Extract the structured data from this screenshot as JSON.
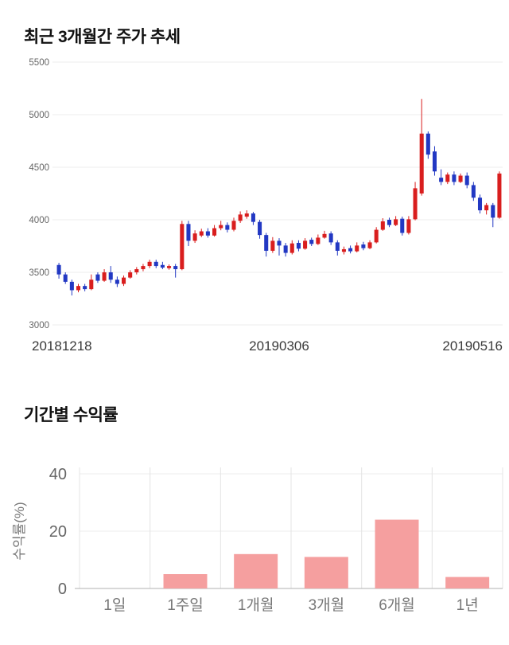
{
  "page": {
    "background": "#ffffff"
  },
  "price_section": {
    "title": "최근 3개월간 주가 추세"
  },
  "returns_section": {
    "title": "기간별 수익률"
  },
  "chart_data": [
    {
      "type": "candlestick",
      "title": "최근 3개월간 주가 추세",
      "x_tick_labels": [
        "20181218",
        "20190306",
        "20190516"
      ],
      "y_ticks": [
        3000,
        3500,
        4000,
        4500,
        5000,
        5500
      ],
      "ylim": [
        3000,
        5500
      ],
      "up_color": "#d91e1e",
      "down_color": "#2238c3",
      "grid": "horizontal-light",
      "candles_format": [
        "open",
        "high",
        "low",
        "close"
      ],
      "candles": [
        [
          3570,
          3590,
          3440,
          3480
        ],
        [
          3480,
          3500,
          3390,
          3410
        ],
        [
          3410,
          3430,
          3280,
          3330
        ],
        [
          3330,
          3390,
          3310,
          3370
        ],
        [
          3370,
          3390,
          3320,
          3340
        ],
        [
          3340,
          3480,
          3330,
          3430
        ],
        [
          3480,
          3500,
          3400,
          3420
        ],
        [
          3420,
          3530,
          3410,
          3500
        ],
        [
          3500,
          3560,
          3400,
          3430
        ],
        [
          3430,
          3460,
          3360,
          3390
        ],
        [
          3390,
          3470,
          3370,
          3450
        ],
        [
          3450,
          3520,
          3440,
          3500
        ],
        [
          3500,
          3550,
          3480,
          3530
        ],
        [
          3530,
          3580,
          3510,
          3560
        ],
        [
          3560,
          3620,
          3540,
          3600
        ],
        [
          3600,
          3620,
          3540,
          3560
        ],
        [
          3570,
          3600,
          3530,
          3545
        ],
        [
          3540,
          3575,
          3525,
          3560
        ],
        [
          3560,
          3580,
          3450,
          3530
        ],
        [
          3530,
          3990,
          3520,
          3960
        ],
        [
          3960,
          3990,
          3750,
          3800
        ],
        [
          3800,
          3900,
          3780,
          3870
        ],
        [
          3850,
          3915,
          3835,
          3890
        ],
        [
          3890,
          3920,
          3830,
          3850
        ],
        [
          3850,
          3950,
          3840,
          3920
        ],
        [
          3920,
          3990,
          3900,
          3950
        ],
        [
          3950,
          3975,
          3880,
          3905
        ],
        [
          3905,
          4020,
          3890,
          3990
        ],
        [
          3990,
          4080,
          3970,
          4050
        ],
        [
          4030,
          4090,
          4010,
          4060
        ],
        [
          4060,
          4075,
          3950,
          3980
        ],
        [
          3980,
          4000,
          3820,
          3855
        ],
        [
          3855,
          3875,
          3650,
          3705
        ],
        [
          3705,
          3835,
          3685,
          3800
        ],
        [
          3800,
          3825,
          3660,
          3755
        ],
        [
          3755,
          3780,
          3650,
          3685
        ],
        [
          3685,
          3805,
          3670,
          3775
        ],
        [
          3780,
          3805,
          3700,
          3725
        ],
        [
          3725,
          3825,
          3715,
          3800
        ],
        [
          3810,
          3830,
          3750,
          3770
        ],
        [
          3770,
          3860,
          3760,
          3830
        ],
        [
          3830,
          3895,
          3820,
          3865
        ],
        [
          3870,
          3890,
          3760,
          3785
        ],
        [
          3785,
          3805,
          3660,
          3705
        ],
        [
          3695,
          3745,
          3670,
          3720
        ],
        [
          3730,
          3755,
          3680,
          3700
        ],
        [
          3700,
          3785,
          3690,
          3755
        ],
        [
          3765,
          3790,
          3710,
          3730
        ],
        [
          3730,
          3805,
          3720,
          3785
        ],
        [
          3785,
          3930,
          3775,
          3905
        ],
        [
          3905,
          4015,
          3895,
          3985
        ],
        [
          4000,
          4020,
          3930,
          3950
        ],
        [
          3950,
          4035,
          3940,
          4005
        ],
        [
          4010,
          4030,
          3850,
          3875
        ],
        [
          3875,
          4035,
          3860,
          4005
        ],
        [
          4005,
          4360,
          3995,
          4300
        ],
        [
          4250,
          5150,
          4230,
          4820
        ],
        [
          4820,
          4840,
          4580,
          4620
        ],
        [
          4650,
          4700,
          4420,
          4460
        ],
        [
          4400,
          4480,
          4330,
          4360
        ],
        [
          4360,
          4450,
          4340,
          4430
        ],
        [
          4430,
          4460,
          4330,
          4360
        ],
        [
          4360,
          4440,
          4350,
          4420
        ],
        [
          4420,
          4450,
          4300,
          4330
        ],
        [
          4330,
          4360,
          4180,
          4210
        ],
        [
          4210,
          4240,
          4060,
          4090
        ],
        [
          4090,
          4160,
          4050,
          4140
        ],
        [
          4140,
          4160,
          3930,
          4020
        ],
        [
          4020,
          4460,
          4010,
          4440
        ]
      ]
    },
    {
      "type": "bar",
      "title": "기간별 수익률",
      "categories": [
        "1일",
        "1주일",
        "1개월",
        "3개월",
        "6개월",
        "1년"
      ],
      "values": [
        0,
        5,
        12,
        11,
        24,
        4
      ],
      "ylabel": "수익률(%)",
      "y_ticks": [
        0,
        20,
        40
      ],
      "ylim": [
        0,
        40
      ],
      "bar_color": "#f59f9f",
      "grid": "on",
      "legend": "none"
    }
  ]
}
